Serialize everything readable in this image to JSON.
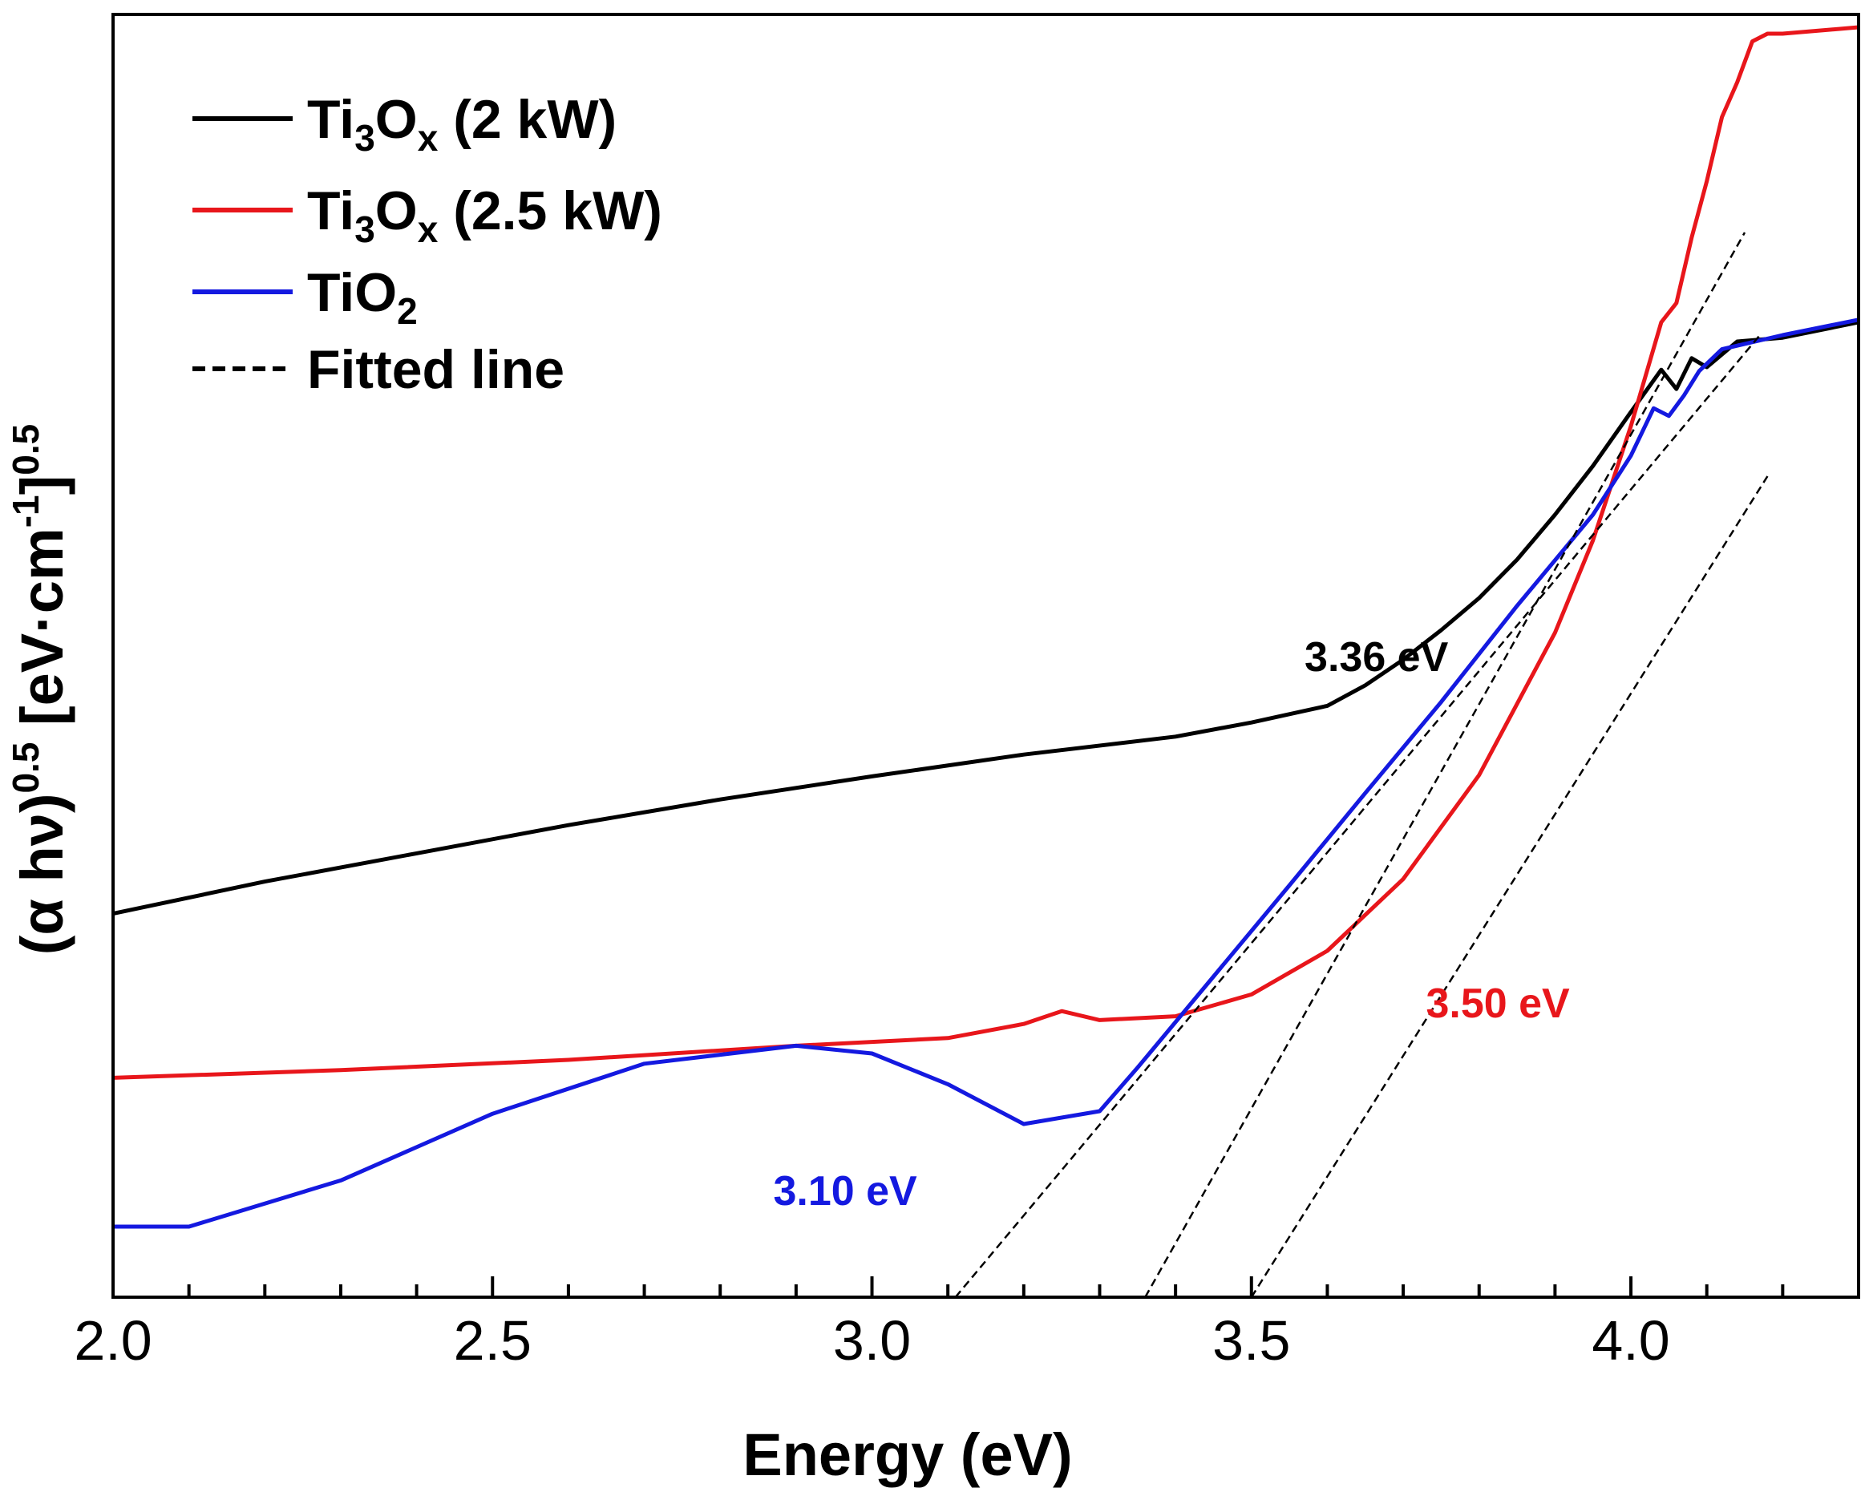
{
  "chart_data": {
    "type": "line",
    "title": "",
    "xlabel": "Energy (eV)",
    "ylabel": {
      "base": "(α hν)",
      "exp1": "0.5",
      "unit_open": " [eV·cm",
      "exp2": "-1",
      "unit_close": "]",
      "exp3": "0.5"
    },
    "xlim": [
      2.0,
      4.3
    ],
    "ylim": [
      0,
      1
    ],
    "xticks": [
      {
        "value": 2.0,
        "label": "2.0"
      },
      {
        "value": 2.5,
        "label": "2.5"
      },
      {
        "value": 3.0,
        "label": "3.0"
      },
      {
        "value": 3.5,
        "label": "3.5"
      },
      {
        "value": 4.0,
        "label": "4.0"
      }
    ],
    "minor_xtick_step": 0.1,
    "y_tick_labels": "none (arbitrary units)",
    "legend_position": "top-left",
    "series": [
      {
        "key": "ti3ox_2kw",
        "name": {
          "base": "Ti",
          "sub1": "3",
          "mid": "O",
          "sub2": "x",
          "rest": " (2 kW)"
        },
        "color": "#000000",
        "x": [
          2.0,
          2.2,
          2.4,
          2.6,
          2.8,
          3.0,
          3.2,
          3.4,
          3.5,
          3.6,
          3.65,
          3.7,
          3.75,
          3.8,
          3.85,
          3.9,
          3.95,
          4.0,
          4.04,
          4.06,
          4.08,
          4.1,
          4.14,
          4.2,
          4.3
        ],
        "y": [
          0.299,
          0.324,
          0.346,
          0.368,
          0.388,
          0.406,
          0.423,
          0.437,
          0.448,
          0.461,
          0.477,
          0.497,
          0.52,
          0.545,
          0.575,
          0.61,
          0.648,
          0.69,
          0.723,
          0.708,
          0.732,
          0.725,
          0.745,
          0.748,
          0.76
        ]
      },
      {
        "key": "ti3ox_25kw",
        "name": {
          "base": "Ti",
          "sub1": "3",
          "mid": "O",
          "sub2": "x",
          "rest": " (2.5 kW)"
        },
        "color": "#e8161b",
        "x": [
          2.0,
          2.3,
          2.6,
          2.9,
          3.1,
          3.2,
          3.25,
          3.3,
          3.4,
          3.5,
          3.6,
          3.7,
          3.8,
          3.9,
          3.95,
          4.0,
          4.04,
          4.06,
          4.08,
          4.1,
          4.12,
          4.14,
          4.16,
          4.18,
          4.2,
          4.3
        ],
        "y": [
          0.171,
          0.177,
          0.185,
          0.196,
          0.202,
          0.213,
          0.223,
          0.216,
          0.219,
          0.236,
          0.27,
          0.326,
          0.407,
          0.518,
          0.59,
          0.679,
          0.76,
          0.775,
          0.826,
          0.87,
          0.92,
          0.947,
          0.979,
          0.985,
          0.985,
          0.99
        ]
      },
      {
        "key": "tio2",
        "name": {
          "base": "TiO",
          "sub1": "2",
          "mid": "",
          "sub2": "",
          "rest": ""
        },
        "color": "#1419e0",
        "x": [
          2.0,
          2.1,
          2.3,
          2.5,
          2.7,
          2.9,
          3.0,
          3.1,
          3.2,
          3.3,
          3.35,
          3.45,
          3.55,
          3.65,
          3.75,
          3.85,
          3.95,
          4.0,
          4.03,
          4.05,
          4.07,
          4.09,
          4.12,
          4.2,
          4.3
        ],
        "y": [
          0.055,
          0.055,
          0.091,
          0.143,
          0.182,
          0.196,
          0.19,
          0.166,
          0.135,
          0.145,
          0.179,
          0.25,
          0.321,
          0.393,
          0.464,
          0.539,
          0.61,
          0.656,
          0.693,
          0.687,
          0.703,
          0.722,
          0.739,
          0.75,
          0.762
        ]
      }
    ],
    "fitted_lines": {
      "name": "Fitted line",
      "color": "#000000",
      "style": "dashed",
      "lines": [
        {
          "x": [
            3.11,
            4.17
          ],
          "y": [
            0.0,
            0.75
          ]
        },
        {
          "x": [
            3.36,
            4.15
          ],
          "y": [
            0.0,
            0.83
          ]
        },
        {
          "x": [
            3.5,
            4.18
          ],
          "y": [
            0.0,
            0.64
          ]
        }
      ]
    },
    "annotations": [
      {
        "key": "a336",
        "text": "3.36 eV",
        "color": "#000000",
        "x": 3.57,
        "y": 0.488
      },
      {
        "key": "a350",
        "text": "3.50 eV",
        "color": "#e8161b",
        "x": 3.73,
        "y": 0.218
      },
      {
        "key": "a310",
        "text": "3.10 eV",
        "color": "#1419e0",
        "x": 2.87,
        "y": 0.072
      }
    ]
  }
}
